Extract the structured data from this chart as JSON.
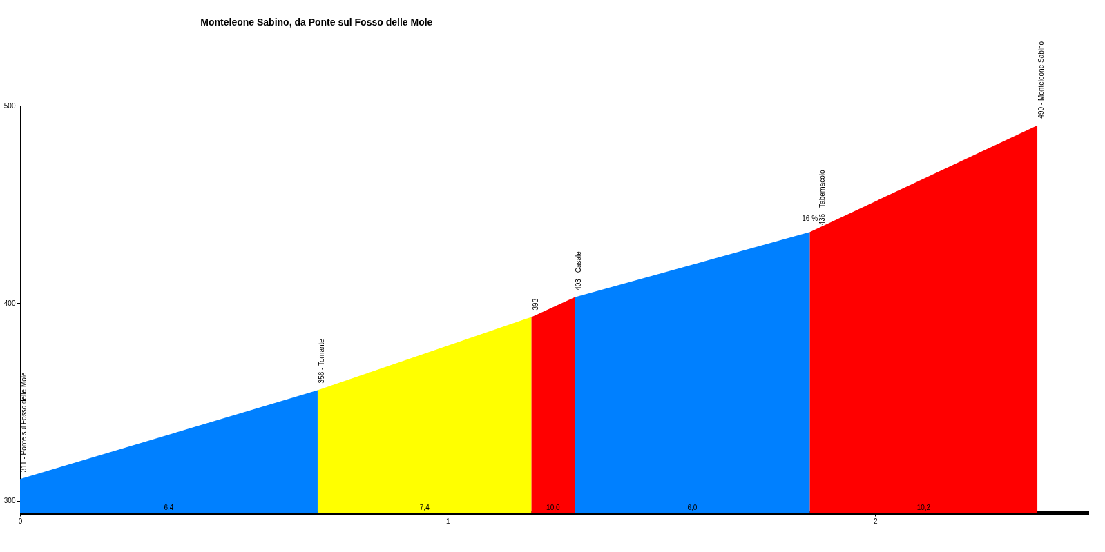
{
  "chart_data": {
    "type": "area",
    "title": "Monteleone Sabino, da Ponte sul Fosso delle Mole",
    "series": [
      {
        "color": "#0080ff",
        "x": [
          0,
          0.696
        ],
        "values": [
          311,
          356
        ]
      },
      {
        "color": "#ffff00",
        "x": [
          0.696,
          1.196
        ],
        "values": [
          356,
          393
        ]
      },
      {
        "color": "#ff0000",
        "x": [
          1.196,
          1.297
        ],
        "values": [
          393,
          403
        ]
      },
      {
        "color": "#0080ff",
        "x": [
          1.297,
          1.847
        ],
        "values": [
          403,
          436
        ]
      },
      {
        "color": "#ff0000",
        "x": [
          1.847,
          2.379
        ],
        "values": [
          436,
          490
        ]
      }
    ],
    "xlim": [
      0,
      2.5
    ],
    "ylim": [
      294,
      500
    ],
    "xticks": [
      0,
      1,
      2
    ],
    "yticks": [
      300,
      400,
      500
    ],
    "grid": false,
    "annotations": [
      {
        "text": "311 - Ponte sul Fosso delle Mole",
        "x": 0,
        "y": 311
      },
      {
        "text": "356 - Tornante",
        "x": 0.696,
        "y": 356
      },
      {
        "text": "393",
        "x": 1.196,
        "y": 393
      },
      {
        "text": "403 - Casale",
        "x": 1.297,
        "y": 403
      },
      {
        "text": "436 - Tabernacolo",
        "x": 1.847,
        "y": 436
      },
      {
        "text": "490 - Monteleone Sabino",
        "x": 2.379,
        "y": 490
      },
      "6,4",
      "7,4",
      "10,0",
      "6,0",
      "10,2",
      {
        "text": "16 %",
        "x": 1.847,
        "y": 436
      }
    ]
  }
}
